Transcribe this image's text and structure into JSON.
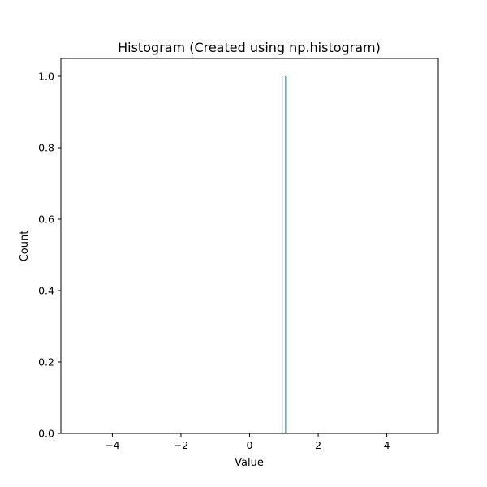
{
  "chart_data": {
    "type": "bar",
    "title": "Histogram (Created using np.histogram)",
    "xlabel": "Value",
    "ylabel": "Count",
    "xlim": [
      -5.5,
      5.5
    ],
    "ylim": [
      0,
      1.05
    ],
    "x_ticks": [
      -4,
      -2,
      0,
      2,
      4
    ],
    "x_tick_labels": [
      "−4",
      "−2",
      "0",
      "2",
      "4"
    ],
    "y_ticks": [
      0.0,
      0.2,
      0.4,
      0.6,
      0.8,
      1.0
    ],
    "y_tick_labels": [
      "0.0",
      "0.2",
      "0.4",
      "0.6",
      "0.8",
      "1.0"
    ],
    "bars": [
      {
        "x": 0.95,
        "value": 1.0
      },
      {
        "x": 1.05,
        "value": 1.0
      }
    ],
    "bar_width": 0.025,
    "bar_color": "#1f77b4",
    "grid": false,
    "legend": "none"
  }
}
